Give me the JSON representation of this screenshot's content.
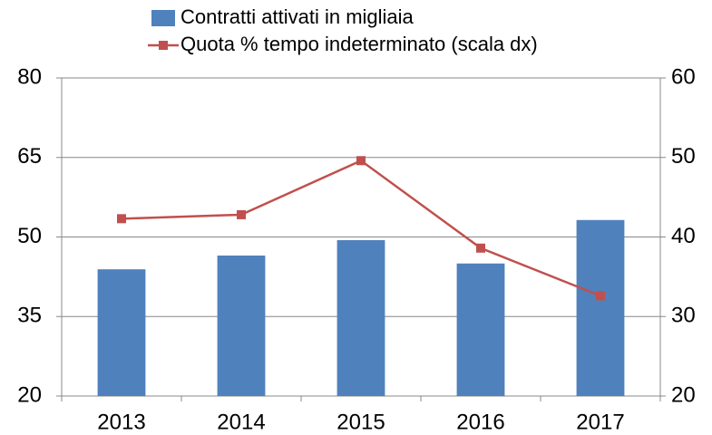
{
  "chart_data": {
    "type": "bar-line",
    "categories": [
      "2013",
      "2014",
      "2015",
      "2016",
      "2017"
    ],
    "series": [
      {
        "name": "Contratti attivati in migliaia",
        "type": "bar",
        "color": "#4f81bd",
        "values": [
          43.9,
          46.5,
          49.4,
          45.0,
          53.2
        ]
      },
      {
        "name": "Quota % tempo indeterminato (scala dx)",
        "type": "line",
        "axis": "y2",
        "color": "#c0504d",
        "values": [
          42.3,
          42.8,
          49.6,
          38.6,
          32.6
        ]
      }
    ],
    "ylim": [
      20,
      80
    ],
    "yticks": [
      20,
      35,
      50,
      65,
      80
    ],
    "y2lim": [
      20,
      60
    ],
    "y2ticks": [
      20,
      30,
      40,
      50,
      60
    ],
    "grid": true
  }
}
